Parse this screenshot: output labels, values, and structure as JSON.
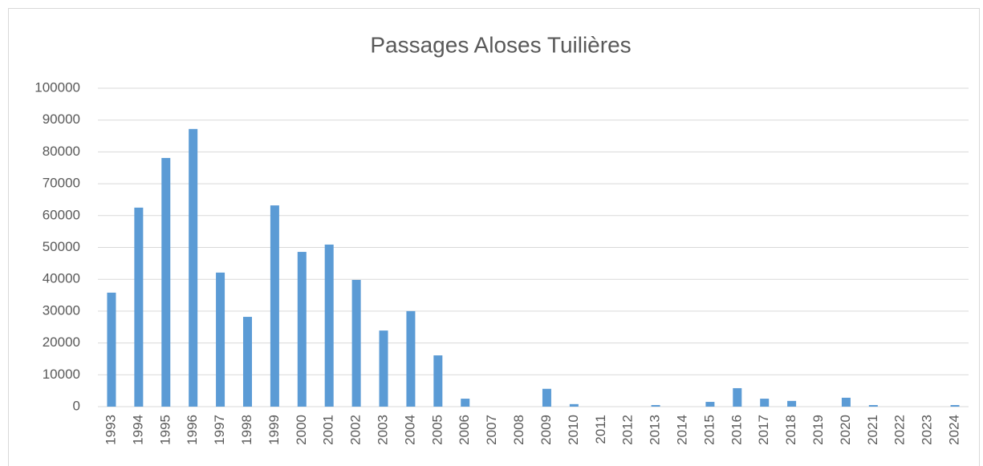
{
  "chart_data": {
    "type": "bar",
    "title": "Passages Aloses Tuilières",
    "categories": [
      "1993",
      "1994",
      "1995",
      "1996",
      "1997",
      "1998",
      "1999",
      "2000",
      "2001",
      "2002",
      "2003",
      "2004",
      "2005",
      "2006",
      "2007",
      "2008",
      "2009",
      "2010",
      "2011",
      "2012",
      "2013",
      "2014",
      "2015",
      "2016",
      "2017",
      "2018",
      "2019",
      "2020",
      "2021",
      "2022",
      "2023",
      "2024"
    ],
    "values": [
      35800,
      62500,
      78100,
      87200,
      42100,
      28200,
      63200,
      48600,
      50900,
      39800,
      23900,
      30000,
      16100,
      2500,
      0,
      0,
      5600,
      800,
      0,
      0,
      500,
      0,
      1500,
      5800,
      2500,
      1800,
      0,
      2800,
      500,
      0,
      0,
      500
    ],
    "color": "#5b9bd5",
    "ylim": [
      0,
      100000
    ],
    "yticks": [
      0,
      10000,
      20000,
      30000,
      40000,
      50000,
      60000,
      70000,
      80000,
      90000,
      100000
    ],
    "grid": true
  }
}
